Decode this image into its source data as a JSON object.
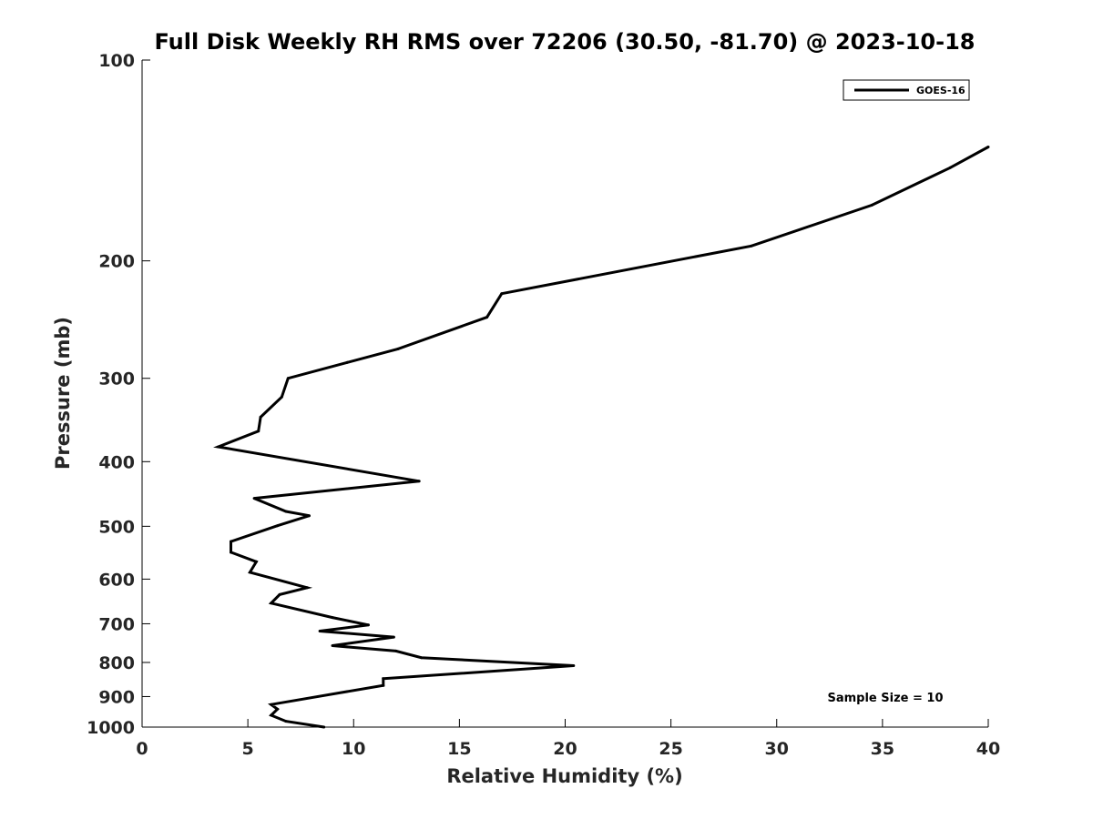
{
  "chart_data": {
    "type": "line",
    "title": "Full Disk Weekly RH RMS over 72206 (30.50, -81.70) @ 2023-10-18",
    "xlabel": "Relative Humidity (%)",
    "ylabel": "Pressure (mb)",
    "xlim": [
      0,
      40
    ],
    "ylim": [
      100,
      1000
    ],
    "y_scale": "log",
    "y_reversed": true,
    "grid": false,
    "legend_position": "top-right",
    "x_ticks": [
      "0",
      "5",
      "10",
      "15",
      "20",
      "25",
      "30",
      "35",
      "40"
    ],
    "y_ticks": [
      "100",
      "200",
      "300",
      "400",
      "500",
      "600",
      "700",
      "800",
      "900",
      "1000"
    ],
    "series": [
      {
        "name": "GOES-16",
        "color": "#000000",
        "points": [
          [
            40.0,
            135
          ],
          [
            38.2,
            145
          ],
          [
            34.5,
            165
          ],
          [
            28.8,
            190
          ],
          [
            17.0,
            224
          ],
          [
            16.3,
            243
          ],
          [
            12.1,
            271
          ],
          [
            9.7,
            284
          ],
          [
            6.9,
            300
          ],
          [
            6.6,
            320
          ],
          [
            5.6,
            343
          ],
          [
            5.5,
            360
          ],
          [
            3.6,
            380
          ],
          [
            13.1,
            428
          ],
          [
            5.3,
            454
          ],
          [
            6.8,
            475
          ],
          [
            7.9,
            482
          ],
          [
            6.4,
            499
          ],
          [
            4.2,
            527
          ],
          [
            4.2,
            547
          ],
          [
            5.4,
            565
          ],
          [
            5.1,
            586
          ],
          [
            7.8,
            618
          ],
          [
            6.5,
            633
          ],
          [
            6.1,
            652
          ],
          [
            9.0,
            685
          ],
          [
            10.7,
            703
          ],
          [
            8.4,
            718
          ],
          [
            11.9,
            733
          ],
          [
            9.0,
            755
          ],
          [
            12.0,
            769
          ],
          [
            13.2,
            787
          ],
          [
            20.4,
            809
          ],
          [
            11.4,
            846
          ],
          [
            11.4,
            866
          ],
          [
            6.1,
            925
          ],
          [
            6.4,
            940
          ],
          [
            6.1,
            960
          ],
          [
            6.8,
            980
          ],
          [
            8.6,
            1000
          ]
        ]
      }
    ],
    "annotations": [
      "Sample Size = 10"
    ]
  }
}
